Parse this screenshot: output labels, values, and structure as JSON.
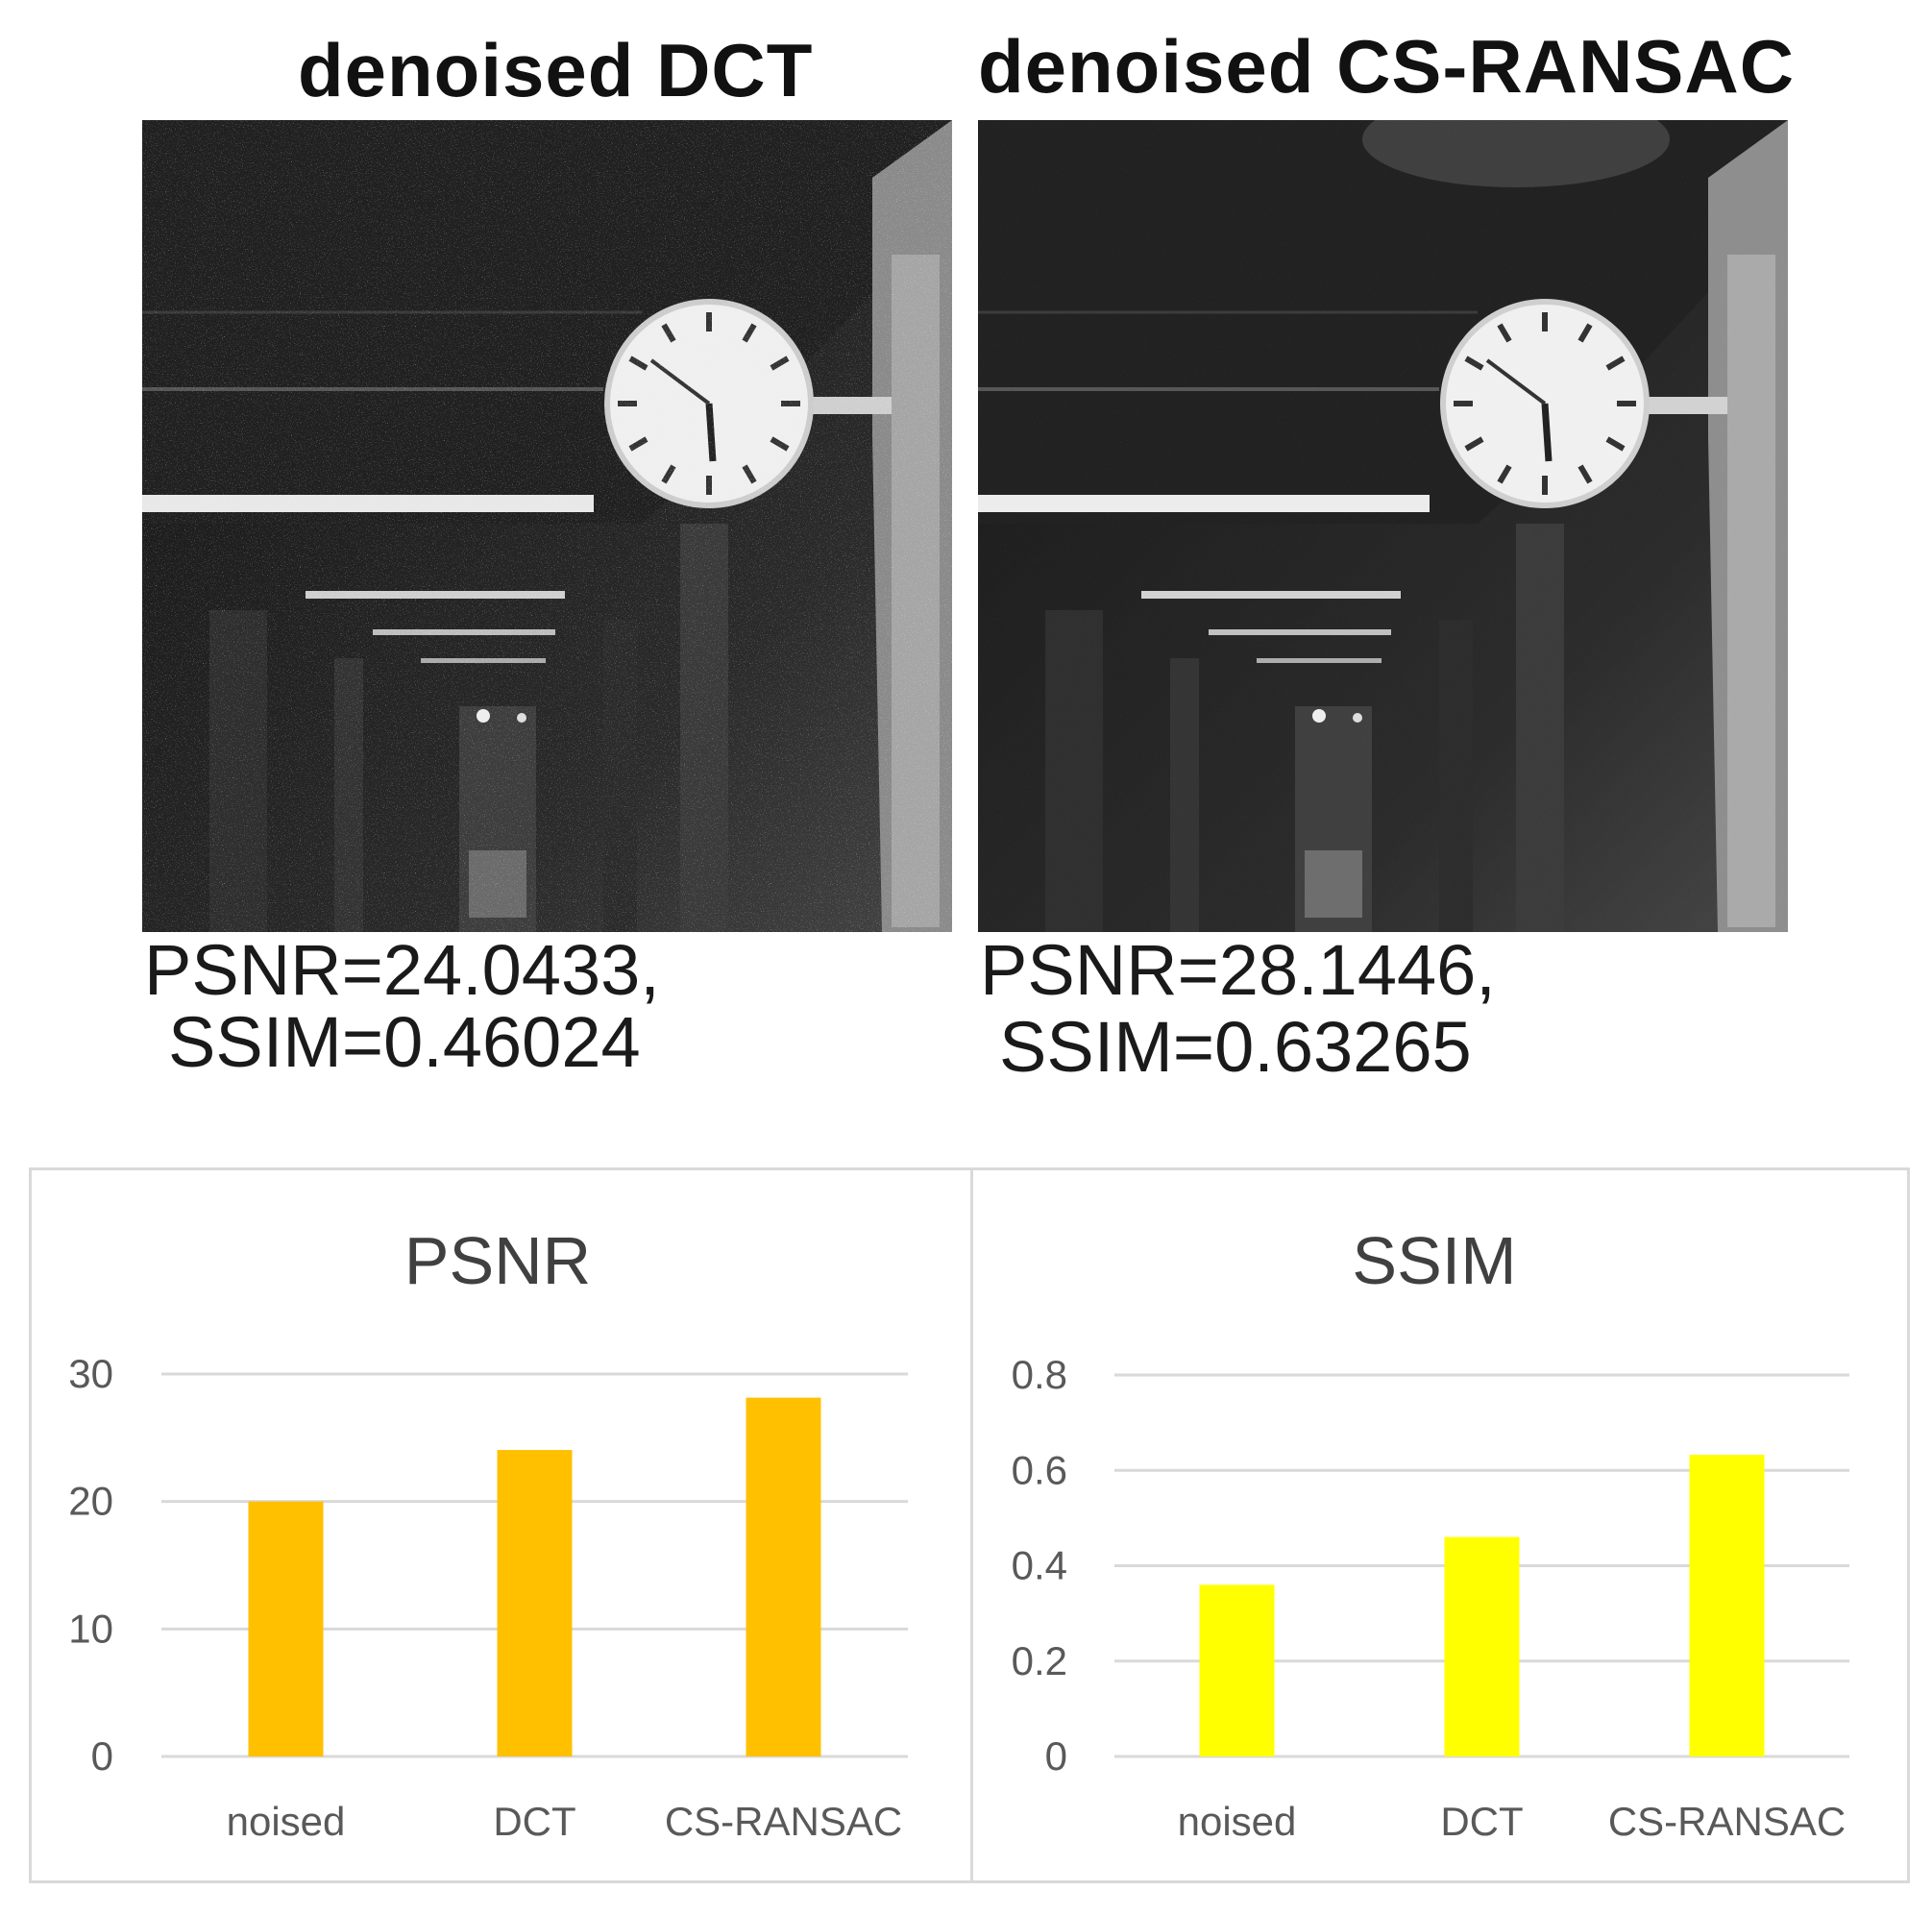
{
  "panels": [
    {
      "title": "denoised DCT",
      "psnr_text": "PSNR=24.0433,",
      "ssim_text": "SSIM=0.46024"
    },
    {
      "title": "denoised CS-RANSAC",
      "psnr_text": "PSNR=28.1446,",
      "ssim_text": "SSIM=0.63265"
    }
  ],
  "colors": {
    "psnr_bar": "#FFC000",
    "ssim_bar": "#FFFF00",
    "grid": "#d9d9d9",
    "text": "#404040"
  },
  "chart_data": [
    {
      "type": "bar",
      "title": "PSNR",
      "categories": [
        "noised",
        "DCT",
        "CS-RANSAC"
      ],
      "values": [
        20,
        24.0433,
        28.1446
      ],
      "ylim": [
        0,
        30
      ],
      "yticks": [
        0,
        10,
        20,
        30
      ],
      "ytick_labels": [
        "0",
        "10",
        "20",
        "30"
      ],
      "grid": true,
      "xlabel": "",
      "ylabel": ""
    },
    {
      "type": "bar",
      "title": "SSIM",
      "categories": [
        "noised",
        "DCT",
        "CS-RANSAC"
      ],
      "values": [
        0.36,
        0.46024,
        0.63265
      ],
      "ylim": [
        0,
        0.8
      ],
      "yticks": [
        0,
        0.2,
        0.4,
        0.6,
        0.8
      ],
      "ytick_labels": [
        "0",
        "0.2",
        "0.4",
        "0.6",
        "0.8"
      ],
      "grid": true,
      "xlabel": "",
      "ylabel": ""
    }
  ]
}
